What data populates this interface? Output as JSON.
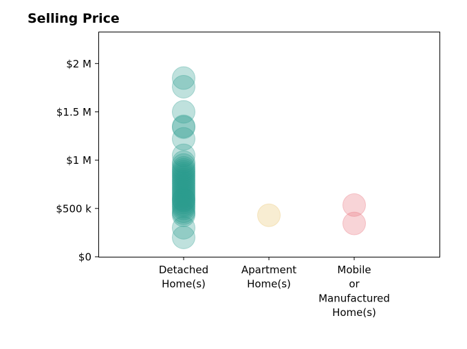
{
  "chart_data": {
    "type": "scatter",
    "title": "Selling Price",
    "xlabel": "",
    "ylabel": "",
    "categories": [
      [
        "Detached",
        "Home(s)"
      ],
      [
        "Apartment",
        "Home(s)"
      ],
      [
        "Mobile",
        "or",
        "Manufactured",
        "Home(s)"
      ]
    ],
    "y_ticks": [
      {
        "value": 0,
        "label": "$0"
      },
      {
        "value": 500000,
        "label": "$500 k"
      },
      {
        "value": 1000000,
        "label": "$1 M"
      },
      {
        "value": 1500000,
        "label": "$1.5 M"
      },
      {
        "value": 2000000,
        "label": "$2 M"
      }
    ],
    "ylim": [
      0,
      2330000
    ],
    "xlim": [
      -1,
      3
    ],
    "grid": false,
    "legend": "none",
    "series": [
      {
        "category_index": 0,
        "color": "#2a9d8f",
        "values": [
          1850000,
          1760000,
          1500000,
          1350000,
          1340000,
          1220000,
          1050000,
          980000,
          950000,
          920000,
          900000,
          880000,
          860000,
          840000,
          820000,
          800000,
          780000,
          760000,
          740000,
          720000,
          700000,
          680000,
          660000,
          640000,
          620000,
          600000,
          590000,
          580000,
          560000,
          540000,
          520000,
          500000,
          470000,
          450000,
          430000,
          300000,
          200000
        ]
      },
      {
        "category_index": 1,
        "color": "#e9c46a",
        "values": [
          430000
        ]
      },
      {
        "category_index": 2,
        "color": "#e76f7a",
        "values": [
          535000,
          345000
        ]
      }
    ]
  }
}
